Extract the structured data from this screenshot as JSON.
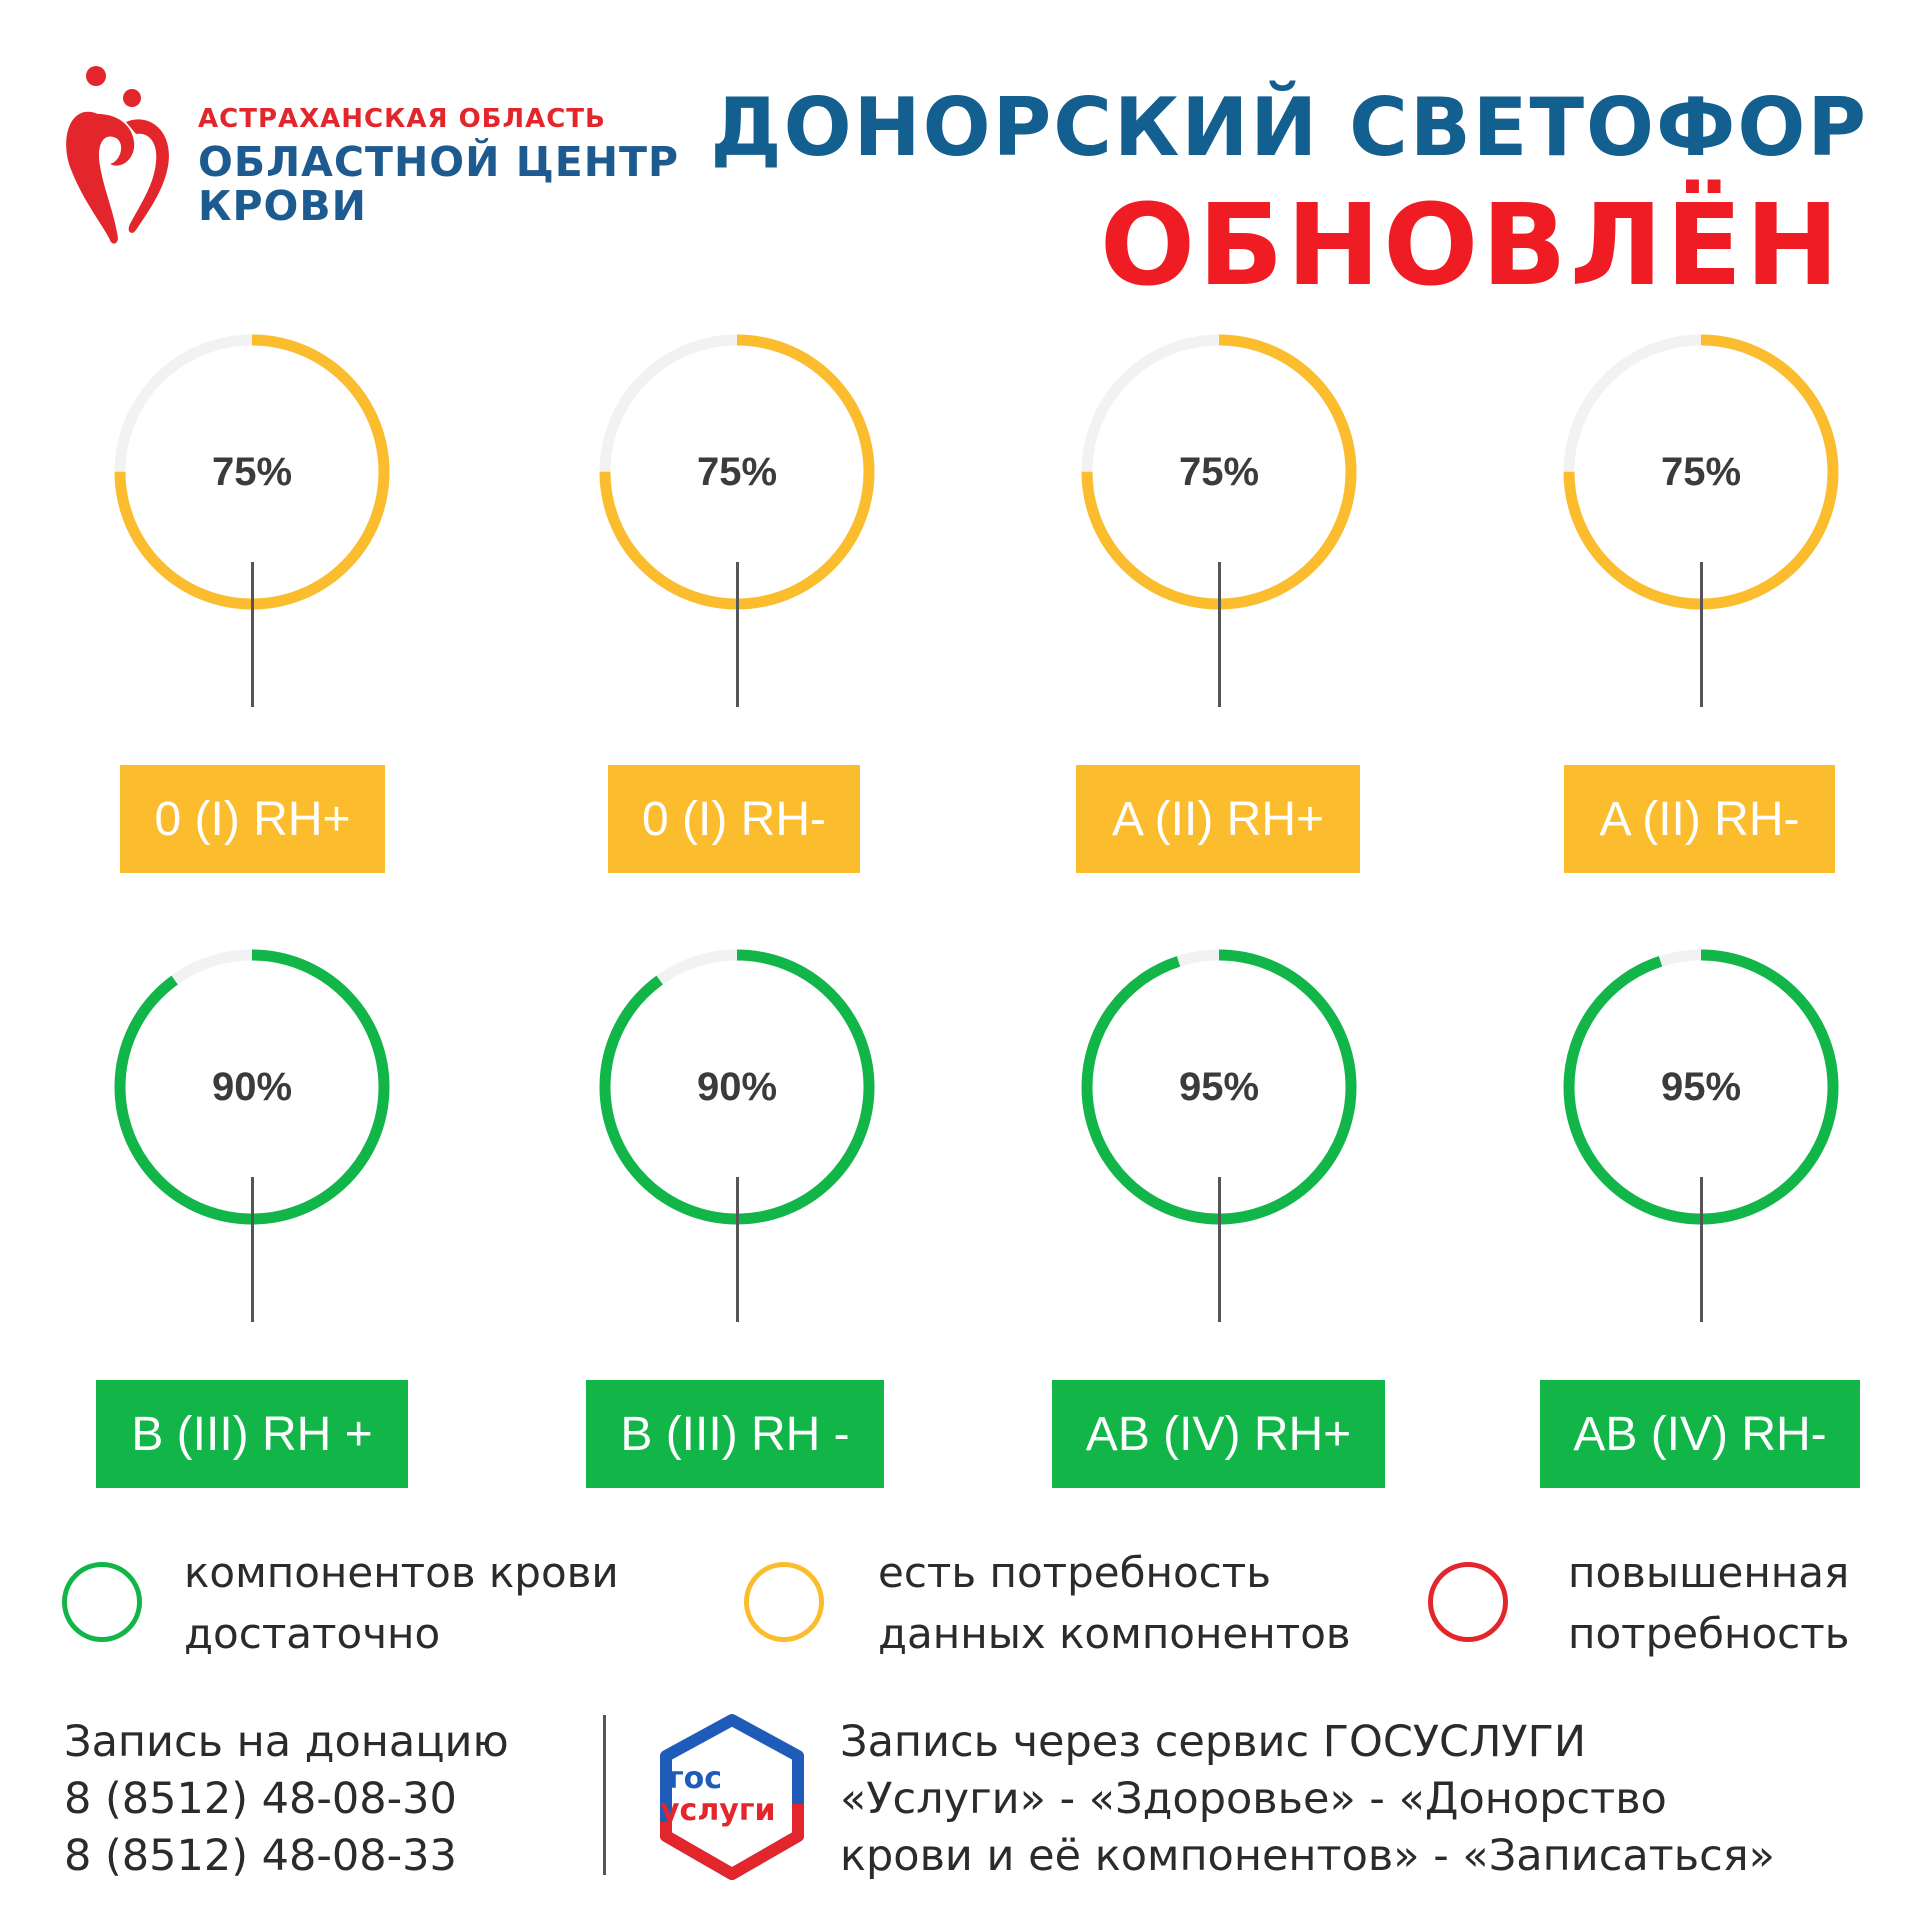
{
  "logo": {
    "region": "АСТРАХАНСКАЯ ОБЛАСТЬ",
    "line1": "ОБЛАСТНОЙ ЦЕНТР",
    "line2": "КРОВИ",
    "colors": {
      "red": "#e3262b",
      "blue": "#1d5a8f"
    }
  },
  "title": {
    "line1": "ДОНОРСКИЙ СВЕТОФОР",
    "line2": "ОБНОВЛЁН",
    "colors": {
      "line1": "#135f8f",
      "line2": "#ef1c24"
    }
  },
  "status_colors": {
    "enough": "#12b548",
    "need": "#fbbd2e",
    "high_need": "#e3262b",
    "track": "#f2f2f2"
  },
  "gauges": [
    {
      "percent_label": "75%",
      "value": 75,
      "status": "need",
      "blood_type": "0 (I) RH+"
    },
    {
      "percent_label": "75%",
      "value": 75,
      "status": "need",
      "blood_type": "0 (I) RH-"
    },
    {
      "percent_label": "75%",
      "value": 75,
      "status": "need",
      "blood_type": "A (II) RH+"
    },
    {
      "percent_label": "75%",
      "value": 75,
      "status": "need",
      "blood_type": "A (II) RH-"
    },
    {
      "percent_label": "90%",
      "value": 90,
      "status": "enough",
      "blood_type": "B (III) RH +"
    },
    {
      "percent_label": "90%",
      "value": 90,
      "status": "enough",
      "blood_type": "B (III) RH -"
    },
    {
      "percent_label": "95%",
      "value": 95,
      "status": "enough",
      "blood_type": "AB (IV) RH+"
    },
    {
      "percent_label": "95%",
      "value": 95,
      "status": "enough",
      "blood_type": "AB (IV) RH-"
    }
  ],
  "legend": [
    {
      "status": "enough",
      "line1": "компонентов крови",
      "line2": "достаточно"
    },
    {
      "status": "need",
      "line1": "есть потребность",
      "line2": "данных компонентов"
    },
    {
      "status": "high_need",
      "line1": "повышенная",
      "line2": "потребность"
    }
  ],
  "footer": {
    "signup_label": "Запись на донацию",
    "phone1": "8 (8512) 48-08-30",
    "phone2": "8 (8512) 48-08-33",
    "gos_logo": {
      "line1": "гос",
      "line2": "услуги"
    },
    "gos_line1": "Запись через сервис ГОСУСЛУГИ",
    "gos_line2": "«Услуги» - «Здоровье» - «Донорство",
    "gos_line3": "крови и её компонентов» - «Записаться»"
  }
}
